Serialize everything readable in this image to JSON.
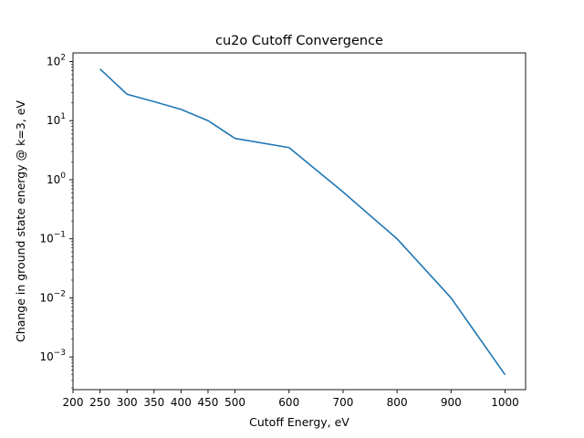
{
  "chart_data": {
    "type": "line",
    "title": "cu2o Cutoff Convergence",
    "xlabel": "Cutoff Energy, eV",
    "ylabel": "Change in ground state energy @ k=3, eV",
    "y_scale": "log",
    "xlim": [
      200,
      1038
    ],
    "ylim": [
      0.00028,
      140
    ],
    "x_ticks": [
      200,
      250,
      300,
      350,
      400,
      450,
      500,
      600,
      700,
      800,
      900,
      1000
    ],
    "y_ticks": [
      {
        "value": 100,
        "base": "10",
        "exp": "2"
      },
      {
        "value": 10,
        "base": "10",
        "exp": "1"
      },
      {
        "value": 1,
        "base": "10",
        "exp": "0"
      },
      {
        "value": 0.1,
        "base": "10",
        "exp": "−1"
      },
      {
        "value": 0.01,
        "base": "10",
        "exp": "−2"
      },
      {
        "value": 0.001,
        "base": "10",
        "exp": "−3"
      }
    ],
    "grid": false,
    "color": "#1f77b4",
    "series": [
      {
        "x": [
          250,
          300,
          350,
          400,
          450,
          500,
          600,
          700,
          800,
          900,
          1000
        ],
        "y": [
          75,
          28,
          21,
          15.5,
          10,
          5.0,
          3.5,
          0.62,
          0.1,
          0.01,
          0.0005
        ]
      }
    ]
  }
}
